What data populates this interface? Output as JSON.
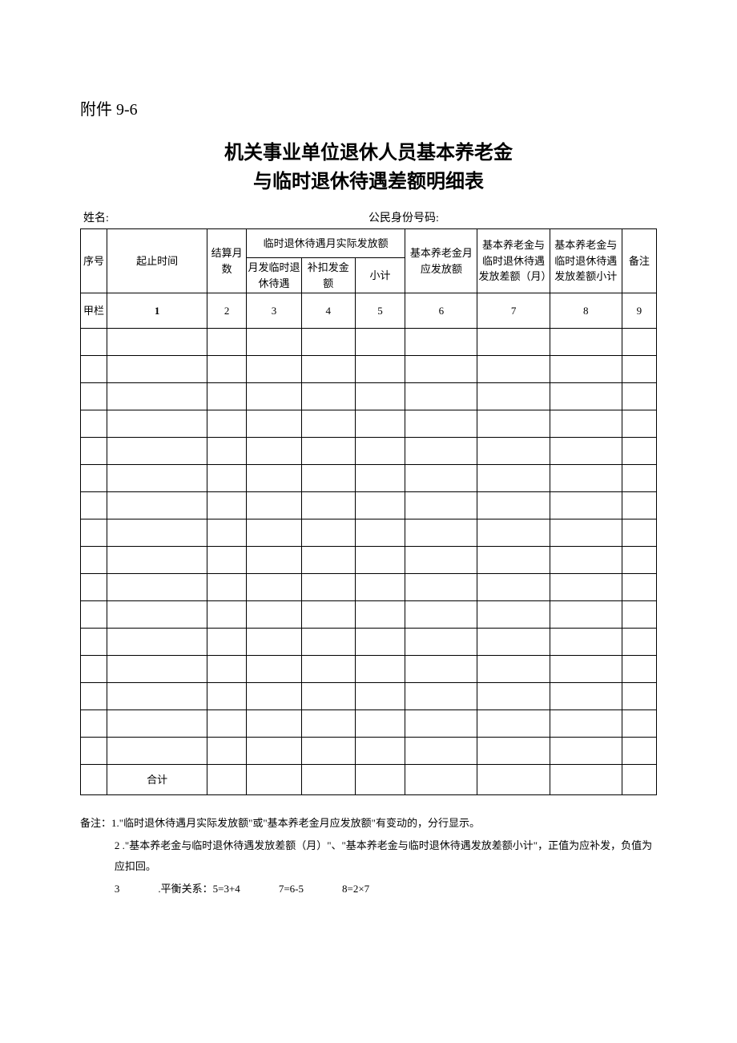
{
  "attachment_label": "附件 9-6",
  "title_line_1": "机关事业单位退休人员基本养老金",
  "title_line_2": "与临时退休待遇差额明细表",
  "info": {
    "name_label": "姓名:",
    "id_label": "公民身份号码:"
  },
  "headers": {
    "seq": "序号",
    "period": "起止时间",
    "months": "结算月数",
    "temp_actual_group": "临时退休待遇月实际发放额",
    "monthly_temp": "月发临时退休待遇",
    "deduct": "补扣发金额",
    "subtotal": "小计",
    "should_pay": "基本养老金月应发放额",
    "diff_month": "基本养老金与临时退休待遇发放差额（月）",
    "diff_total": "基本养老金与临时退休待遇发放差额小计",
    "remark": "备注"
  },
  "jia_row": {
    "label": "甲栏",
    "c1": "1",
    "c2": "2",
    "c3": "3",
    "c4": "4",
    "c5": "5",
    "c6": "6",
    "c7": "7",
    "c8": "8",
    "c9": "9"
  },
  "total_label": "合计",
  "data_row_count": 16,
  "notes": {
    "prefix": "备注：",
    "n1": "1.\"临时退休待遇月实际发放额\"或\"基本养老金月应发放额\"有变动的，分行显示。",
    "n2": "2 .\"基本养老金与临时退休待遇发放差额（月）\"、\"基本养老金与临时退休待遇发放差额小计\"，正值为应补发，负值为应扣回。",
    "n3_lead": "3",
    "n3_a": ".平衡关系：5=3+4",
    "n3_b": "7=6-5",
    "n3_c": "8=2×7"
  },
  "colors": {
    "text": "#000000",
    "background": "#ffffff",
    "border": "#000000"
  }
}
